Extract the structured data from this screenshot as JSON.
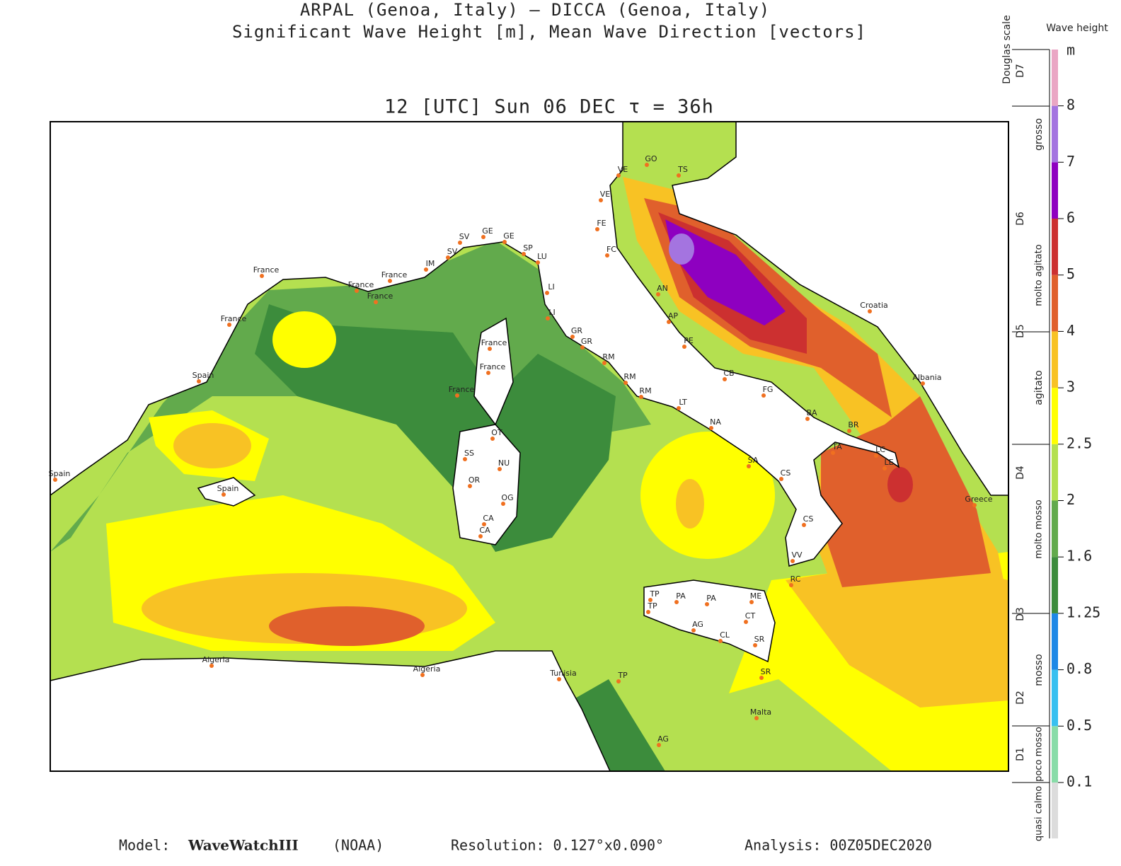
{
  "header": {
    "line1": "ARPAL (Genoa, Italy)  —  DICCA (Genoa, Italy)",
    "line2": "Significant Wave Height [m], Mean Wave Direction [vectors]",
    "time": "12 [UTC] Sun 06 DEC   τ = 36h"
  },
  "legend": {
    "douglas_title": "Douglas scale",
    "height_title": "Wave height",
    "unit": "m",
    "levels": [
      0.1,
      0.5,
      0.8,
      1.25,
      1.6,
      2,
      2.5,
      3,
      4,
      5,
      6,
      7,
      8
    ],
    "colors": [
      "#dcdcdc",
      "#88dca8",
      "#38c0f0",
      "#1e88e6",
      "#3c8c3c",
      "#62aa4c",
      "#b4e050",
      "#ffff00",
      "#f8c224",
      "#e0602c",
      "#cc3030",
      "#8e00c0",
      "#a474e0",
      "#eaa6c4"
    ],
    "douglas": [
      "D1",
      "D2",
      "D3",
      "D4",
      "D5",
      "D6",
      "D7"
    ],
    "states": [
      "quasi calmo",
      "poco mosso",
      "mosso",
      "molto mosso",
      "agitato",
      "molto agitato",
      "grosso"
    ]
  },
  "places": [
    "VE",
    "GO",
    "TS",
    "VE",
    "FE",
    "FC",
    "AN",
    "AP",
    "PE",
    "CB",
    "FG",
    "BA",
    "BR",
    "TA",
    "LC",
    "LE",
    "Croatia",
    "Albania",
    "Greece",
    "SV",
    "GE",
    "GE",
    "SP",
    "LU",
    "LI",
    "LI",
    "GR",
    "GR",
    "RM",
    "RM",
    "RM",
    "LT",
    "NA",
    "SA",
    "CS",
    "CS",
    "VV",
    "RC",
    "ME",
    "PA",
    "PA",
    "TP",
    "TP",
    "AG",
    "CL",
    "CT",
    "SR",
    "SR",
    "Malta",
    "AG",
    "Tunisia",
    "TP",
    "Algeria",
    "Algeria",
    "Spain",
    "Spain",
    "Spain",
    "France",
    "France",
    "France",
    "France",
    "France",
    "IM",
    "SV",
    "OT",
    "SS",
    "NU",
    "OR",
    "OG",
    "CA",
    "CA",
    "France",
    "France",
    "France"
  ],
  "footer": {
    "model_label": "Model:",
    "model": "WaveWatchIII",
    "model_org": "(NOAA)",
    "resolution": "Resolution: 0.127°x0.090°",
    "analysis": "Analysis: 00Z05DEC2020"
  }
}
